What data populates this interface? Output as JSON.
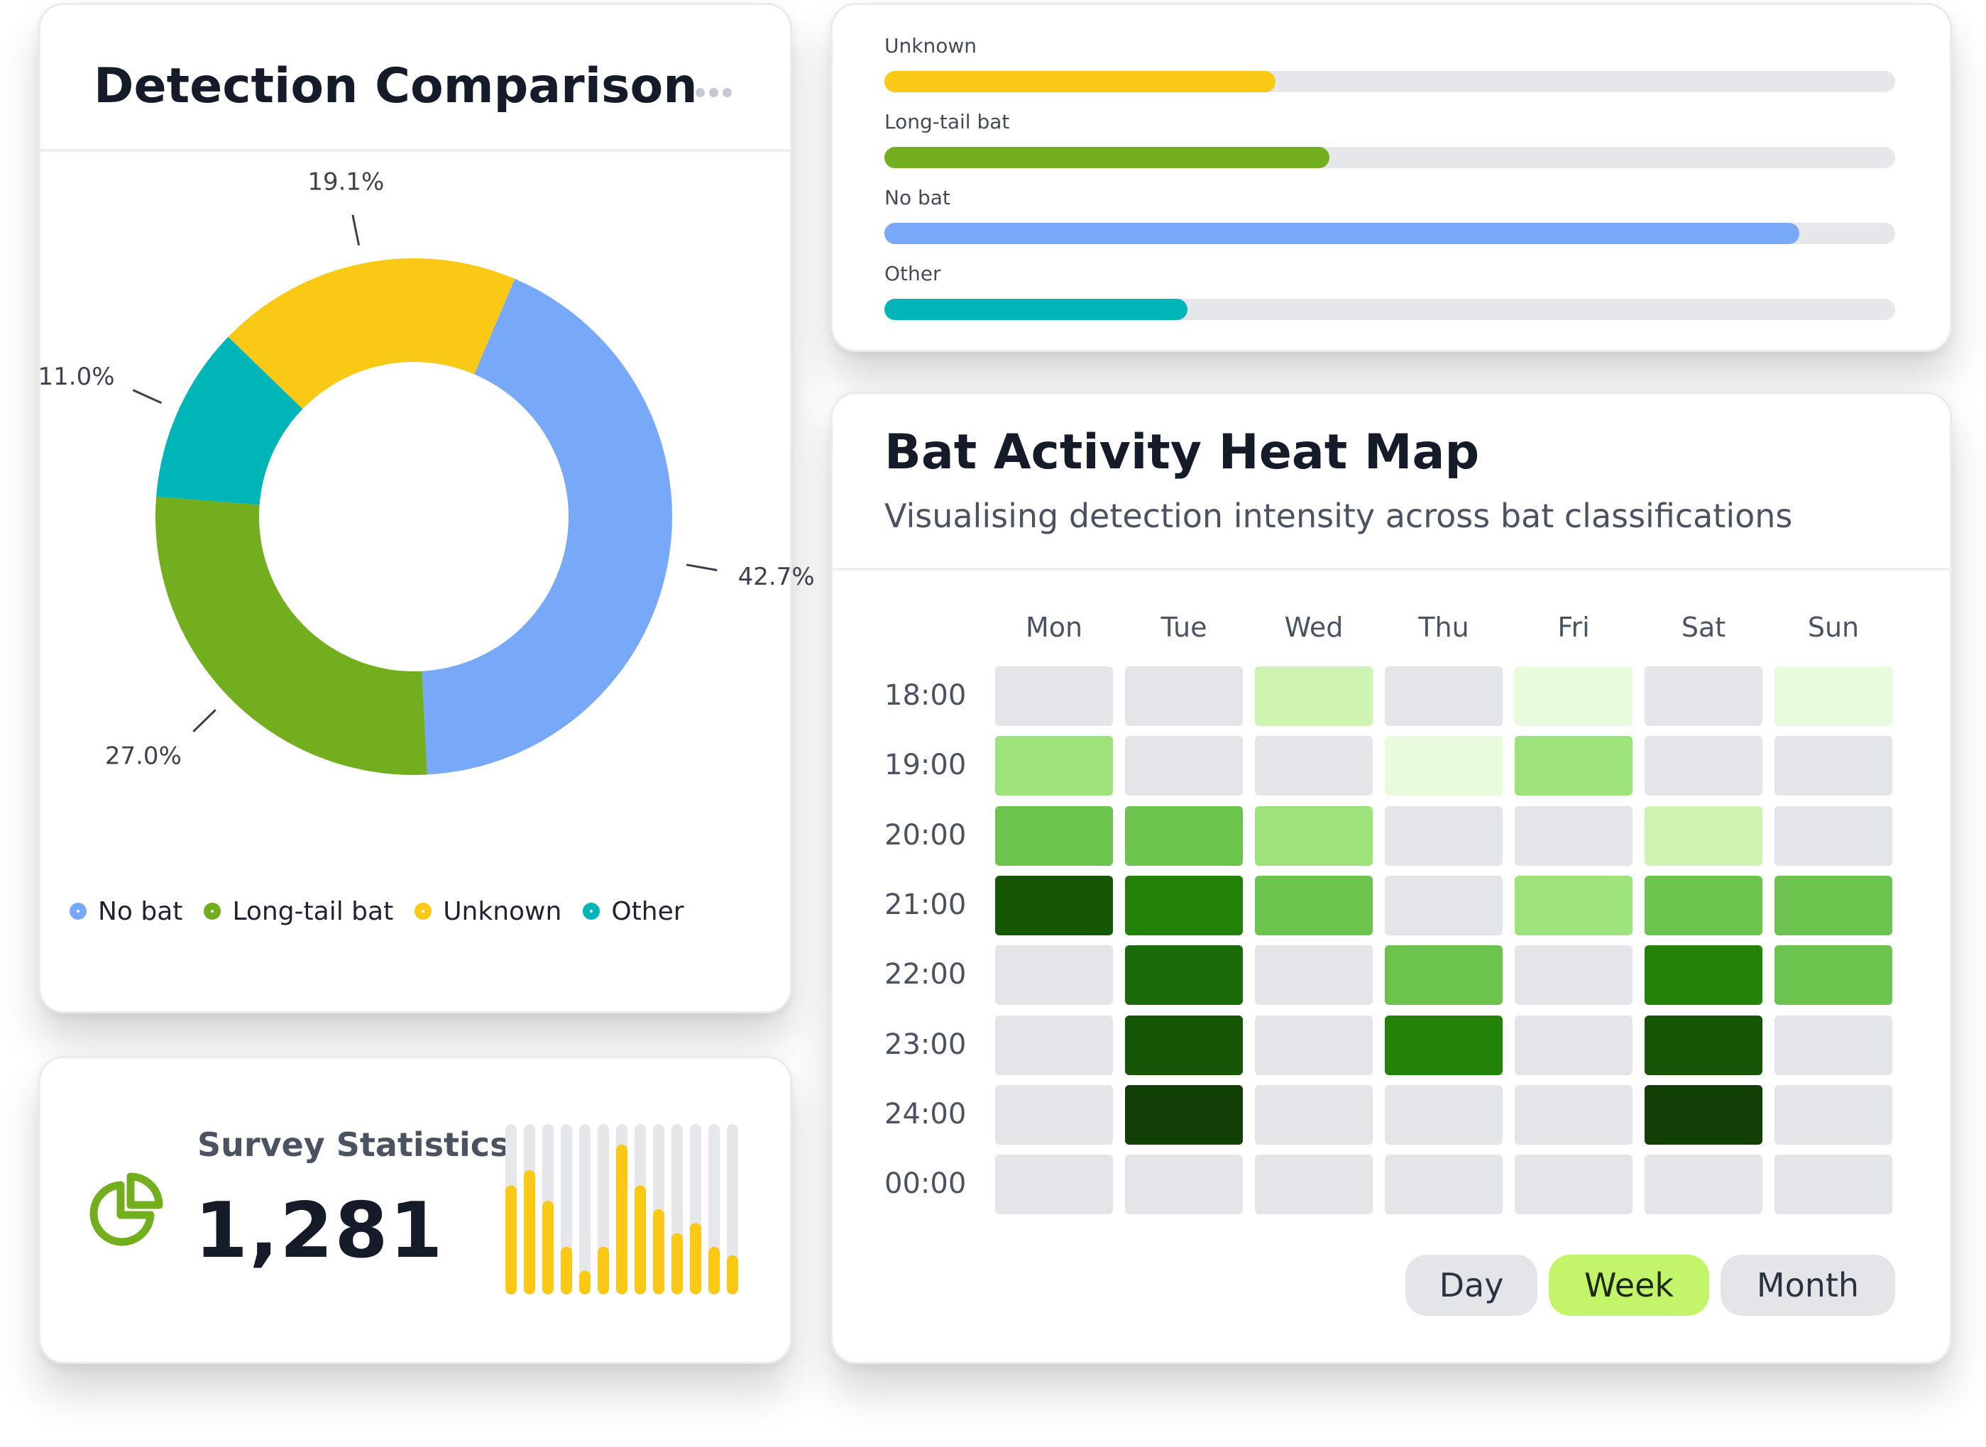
{
  "detection_comparison": {
    "title": "Detection Comparison",
    "slices": [
      {
        "name": "No bat",
        "percent": 42.7,
        "label": "42.7%",
        "color": "#78a9f8"
      },
      {
        "name": "Long-tail bat",
        "percent": 27.0,
        "label": "27.0%",
        "color": "#72ae1e"
      },
      {
        "name": "Other",
        "percent": 11.0,
        "label": "11.0%",
        "color": "#00b5b8"
      },
      {
        "name": "Unknown",
        "percent": 19.1,
        "label": "19.1%",
        "color": "#f9c916"
      }
    ],
    "legend": [
      {
        "label": "No bat",
        "color": "#78a9f8"
      },
      {
        "label": "Long-tail bat",
        "color": "#72ae1e"
      },
      {
        "label": "Unknown",
        "color": "#f9c916"
      },
      {
        "label": "Other",
        "color": "#00b5b8"
      }
    ]
  },
  "classification_bars": [
    {
      "label": "Unknown",
      "fraction": 0.387,
      "color": "#f9c916"
    },
    {
      "label": "Long-tail bat",
      "fraction": 0.44,
      "color": "#72ae1e"
    },
    {
      "label": "No bat",
      "fraction": 0.905,
      "color": "#78a9f8"
    },
    {
      "label": "Other",
      "fraction": 0.3,
      "color": "#00b5b8"
    }
  ],
  "survey_statistics": {
    "title": "Survey Statistics",
    "value": "1,281",
    "sparkline_fractions": [
      0.64,
      0.73,
      0.55,
      0.28,
      0.14,
      0.28,
      0.88,
      0.64,
      0.5,
      0.36,
      0.42,
      0.28,
      0.23
    ],
    "bar_color": "#f9c916",
    "track_color": "#e6e7eb"
  },
  "heat_map": {
    "title": "Bat Activity Heat Map",
    "subtitle": "Visualising detection intensity across bat classifications",
    "days": [
      "Mon",
      "Tue",
      "Wed",
      "Thu",
      "Fri",
      "Sat",
      "Sun"
    ],
    "hours": [
      "18:00",
      "19:00",
      "20:00",
      "21:00",
      "22:00",
      "23:00",
      "24:00",
      "00:00"
    ],
    "levels": [
      [
        0,
        0,
        2,
        0,
        1,
        0,
        1
      ],
      [
        3,
        0,
        0,
        1,
        3,
        0,
        0
      ],
      [
        4,
        4,
        3,
        0,
        0,
        2,
        0
      ],
      [
        7,
        5,
        4,
        0,
        3,
        4,
        4
      ],
      [
        0,
        6,
        0,
        4,
        0,
        5,
        4
      ],
      [
        0,
        7,
        0,
        5,
        0,
        7,
        0
      ],
      [
        0,
        8,
        0,
        0,
        0,
        8,
        0
      ],
      [
        0,
        0,
        0,
        0,
        0,
        0,
        0
      ]
    ],
    "level_colors": [
      "#e4e5e9",
      "#e8fbdc",
      "#cef4b1",
      "#9de27b",
      "#6cc34e",
      "#238309",
      "#1a6c0b",
      "#165707",
      "#113f05"
    ],
    "ranges": [
      {
        "label": "Day",
        "active": false
      },
      {
        "label": "Week",
        "active": true
      },
      {
        "label": "Month",
        "active": false
      }
    ]
  }
}
